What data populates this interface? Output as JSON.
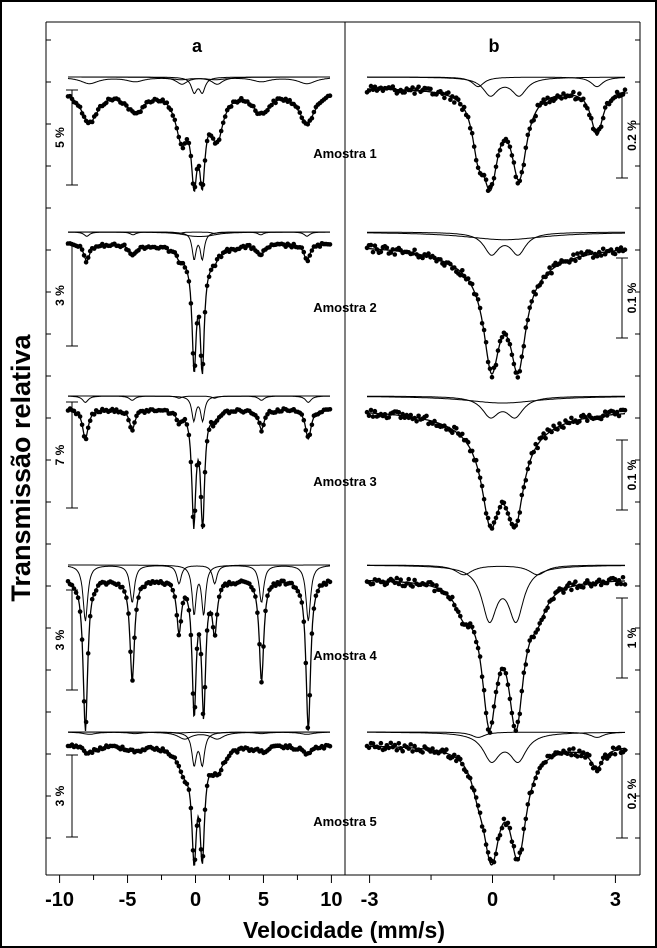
{
  "chart_data": {
    "type": "scatter",
    "title": "",
    "xlabel": "Velocidade (mm/s)",
    "ylabel": "Transmissão relativa",
    "panel_labels": [
      "a",
      "b"
    ],
    "panels": [
      {
        "label": "a",
        "xlim": [
          -11,
          11
        ],
        "xticks": [
          -10,
          -5,
          0,
          5,
          10
        ],
        "xticklabels": [
          "-10",
          "-5",
          "0",
          "5",
          "10"
        ]
      },
      {
        "label": "b",
        "xlim": [
          -3.6,
          3.6
        ],
        "xticks": [
          -3,
          0,
          3
        ],
        "xticklabels": [
          "-3",
          "0",
          "3"
        ]
      }
    ],
    "samples": [
      {
        "name": "Amostra 1",
        "scale_a": "5 %",
        "scale_b": "0.2 %",
        "a_sub": [
          {
            "type": "doublet",
            "center": 0.2,
            "split": 0.6,
            "width": 0.5,
            "depth": 0.45
          },
          {
            "type": "sextet",
            "center": 0.2,
            "half_split": 8.0,
            "width": 1.6,
            "depth": 0.2
          },
          {
            "type": "doublet",
            "center": 0.3,
            "split": 2.6,
            "width": 1.0,
            "depth": 0.22
          }
        ],
        "b_sub": [
          {
            "type": "doublet",
            "center": 0.3,
            "split": 0.7,
            "width": 0.45,
            "depth": 0.55
          },
          {
            "type": "doublet",
            "center": 1.1,
            "split": 2.9,
            "width": 0.35,
            "depth": 0.3
          }
        ]
      },
      {
        "name": "Amostra 2",
        "scale_a": "3 %",
        "scale_b": "0.1 %",
        "a_sub": [
          {
            "type": "doublet",
            "center": 0.2,
            "split": 0.6,
            "width": 0.35,
            "depth": 0.75
          },
          {
            "type": "sextet",
            "center": 0.1,
            "half_split": 8.1,
            "width": 0.5,
            "depth": 0.12
          },
          {
            "type": "doublet",
            "center": 0.3,
            "split": 1.0,
            "width": 2.0,
            "depth": 0.08
          }
        ],
        "b_sub": [
          {
            "type": "doublet",
            "center": 0.3,
            "split": 0.65,
            "width": 0.45,
            "depth": 0.6
          },
          {
            "type": "singlet",
            "center": 0.3,
            "width": 2.4,
            "depth": 0.22
          }
        ]
      },
      {
        "name": "Amostra 3",
        "scale_a": "7 %",
        "scale_b": "0.1 %",
        "a_sub": [
          {
            "type": "doublet",
            "center": 0.2,
            "split": 0.65,
            "width": 0.35,
            "depth": 0.75
          },
          {
            "type": "sextet",
            "center": 0.1,
            "half_split": 8.2,
            "width": 0.5,
            "depth": 0.2
          }
        ],
        "b_sub": [
          {
            "type": "doublet",
            "center": 0.25,
            "split": 0.6,
            "width": 0.5,
            "depth": 0.6
          },
          {
            "type": "singlet",
            "center": 0.25,
            "width": 2.2,
            "depth": 0.22
          }
        ]
      },
      {
        "name": "Amostra 4",
        "scale_a": "3 %",
        "scale_b": "1 %",
        "a_sub": [
          {
            "type": "doublet",
            "center": 0.25,
            "split": 0.7,
            "width": 0.35,
            "depth": 0.6
          },
          {
            "type": "sextet",
            "center": 0.1,
            "half_split": 8.2,
            "width": 0.4,
            "depth": 0.7
          }
        ],
        "b_sub": [
          {
            "type": "doublet",
            "center": 0.25,
            "split": 0.65,
            "width": 0.45,
            "depth": 0.65
          },
          {
            "type": "doublet",
            "center": 0.2,
            "split": 1.8,
            "width": 0.5,
            "depth": 0.12
          }
        ]
      },
      {
        "name": "Amostra 5",
        "scale_a": "3 %",
        "scale_b": "0.2 %",
        "a_sub": [
          {
            "type": "doublet",
            "center": 0.2,
            "split": 0.6,
            "width": 0.4,
            "depth": 0.7
          },
          {
            "type": "doublet",
            "center": 0.4,
            "split": 2.4,
            "width": 1.2,
            "depth": 0.15
          },
          {
            "type": "sextet",
            "center": 0.2,
            "half_split": 8.0,
            "width": 1.2,
            "depth": 0.05
          }
        ],
        "b_sub": [
          {
            "type": "doublet",
            "center": 0.3,
            "split": 0.65,
            "width": 0.5,
            "depth": 0.6
          },
          {
            "type": "doublet",
            "center": 1.1,
            "split": 2.9,
            "width": 0.4,
            "depth": 0.12
          }
        ]
      }
    ],
    "colors": {
      "line": "#000000",
      "points": "#000000",
      "background": "#ffffff"
    }
  }
}
